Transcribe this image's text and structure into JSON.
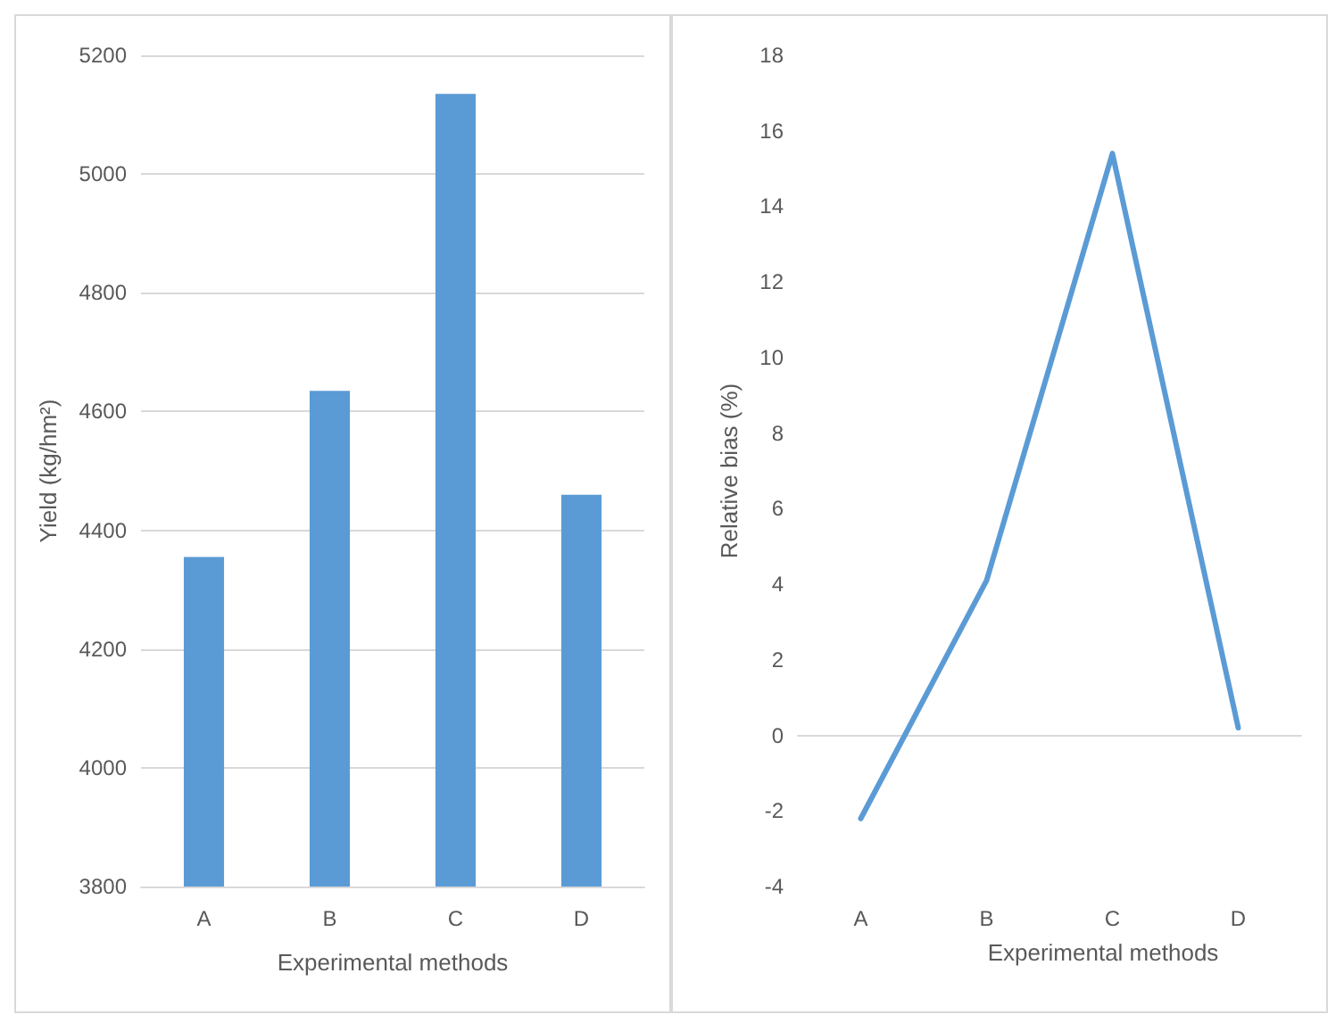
{
  "chart_data": [
    {
      "type": "bar",
      "ylabel": "Yield (kg/hm²)",
      "xlabel": "Experimental methods",
      "categories": [
        "A",
        "B",
        "C",
        "D"
      ],
      "values": [
        4355,
        4635,
        5135,
        4460
      ],
      "color": "#5b9bd5",
      "ylim": [
        3800,
        5200
      ],
      "yticks": [
        3800,
        4000,
        4200,
        4400,
        4600,
        4800,
        5000,
        5200
      ],
      "grid": "y"
    },
    {
      "type": "line",
      "ylabel": "Relative bias (%)",
      "xlabel": "Experimental methods",
      "categories": [
        "A",
        "B",
        "C",
        "D"
      ],
      "values": [
        -2.2,
        4.1,
        15.4,
        0.2
      ],
      "color": "#5b9bd5",
      "ylim": [
        -4,
        18
      ],
      "yticks": [
        -4,
        -2,
        0,
        2,
        4,
        6,
        8,
        10,
        12,
        14,
        16,
        18
      ],
      "marker": "none"
    }
  ]
}
